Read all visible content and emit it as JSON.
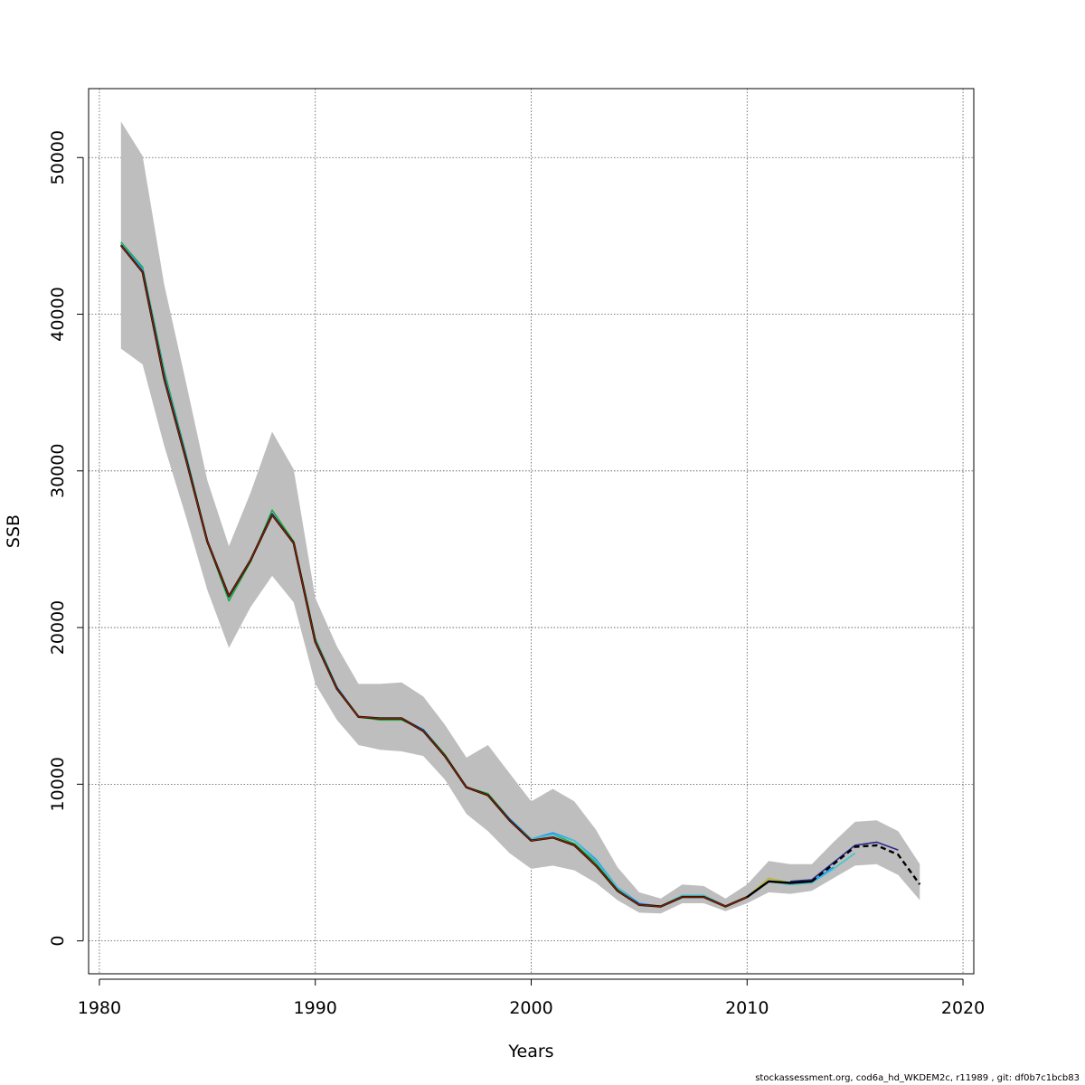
{
  "chart_data": {
    "type": "line",
    "xlabel": "Years",
    "ylabel": "SSB",
    "xlim": [
      1979.5,
      2020.5
    ],
    "ylim": [
      -2100,
      54400
    ],
    "x_ticks": [
      1980,
      1990,
      2000,
      2010,
      2020
    ],
    "y_ticks": [
      0,
      10000,
      20000,
      30000,
      40000,
      50000
    ],
    "grid": true,
    "band_color": "#bebebe",
    "confidence_band": {
      "years": [
        1981,
        1982,
        1983,
        1984,
        1985,
        1986,
        1987,
        1988,
        1989,
        1990,
        1991,
        1992,
        1993,
        1994,
        1995,
        1996,
        1997,
        1998,
        1999,
        2000,
        2001,
        2002,
        2003,
        2004,
        2005,
        2006,
        2007,
        2008,
        2009,
        2010,
        2011,
        2012,
        2013,
        2014,
        2015,
        2016,
        2017,
        2018
      ],
      "lower": [
        37800,
        36800,
        31600,
        27100,
        22400,
        18700,
        21300,
        23300,
        21600,
        16400,
        14100,
        12500,
        12200,
        12100,
        11800,
        10300,
        8100,
        7000,
        5600,
        4600,
        4800,
        4500,
        3700,
        2600,
        1800,
        1750,
        2400,
        2400,
        1900,
        2400,
        3100,
        3000,
        3200,
        4000,
        4800,
        4900,
        4200,
        2600
      ],
      "upper": [
        52300,
        50100,
        41900,
        35700,
        29400,
        25200,
        28600,
        32500,
        30100,
        21900,
        18800,
        16400,
        16400,
        16500,
        15600,
        13800,
        11700,
        12500,
        10700,
        8900,
        9700,
        8900,
        7100,
        4700,
        3100,
        2700,
        3600,
        3500,
        2700,
        3600,
        5100,
        4900,
        4900,
        6300,
        7600,
        7700,
        7000,
        4900
      ]
    },
    "series": [
      {
        "color": "#22aa44",
        "x": [
          1981,
          1982,
          1983,
          1984,
          1985,
          1986,
          1987,
          1988,
          1989,
          1990,
          1991,
          1992,
          1993,
          1994,
          1995,
          1996,
          1997,
          1998,
          1999,
          2000,
          2001,
          2002,
          2003,
          2004,
          2005,
          2006,
          2007,
          2008,
          2009,
          2010,
          2011,
          2012,
          2013
        ],
        "y": [
          44600,
          43000,
          36400,
          31100,
          25500,
          21700,
          24200,
          27500,
          25500,
          19300,
          16200,
          14300,
          14100,
          14100,
          13500,
          11900,
          9800,
          9400,
          7800,
          6500,
          6800,
          6200,
          5000,
          3300,
          2300,
          2200,
          2900,
          2900,
          2200,
          2800,
          3800,
          3600,
          3700
        ]
      },
      {
        "color": "#1e90ff",
        "x": [
          1981,
          1982,
          1983,
          1984,
          1985,
          1986,
          1987,
          1988,
          1989,
          1990,
          1991,
          1992,
          1993,
          1994,
          1995,
          1996,
          1997,
          1998,
          1999,
          2000,
          2001,
          2002,
          2003,
          2004,
          2005,
          2006,
          2007,
          2008,
          2009,
          2010,
          2011,
          2012,
          2013,
          2014
        ],
        "y": [
          44500,
          42900,
          36200,
          31000,
          25500,
          21900,
          24300,
          27300,
          25400,
          19200,
          16200,
          14300,
          14200,
          14200,
          13500,
          11800,
          9800,
          9300,
          7800,
          6500,
          6900,
          6400,
          5200,
          3400,
          2400,
          2200,
          2900,
          2900,
          2200,
          2800,
          3800,
          3700,
          3800,
          4700
        ]
      },
      {
        "color": "#40c4d0",
        "x": [
          1981,
          1982,
          1983,
          1984,
          1985,
          1986,
          1987,
          1988,
          1989,
          1990,
          1991,
          1992,
          1993,
          1994,
          1995,
          1996,
          1997,
          1998,
          1999,
          2000,
          2001,
          2002,
          2003,
          2004,
          2005,
          2006,
          2007,
          2008,
          2009,
          2010,
          2011,
          2012,
          2013,
          2014,
          2015
        ],
        "y": [
          44500,
          42800,
          36100,
          30900,
          25500,
          21900,
          24300,
          27200,
          25400,
          19200,
          16100,
          14300,
          14200,
          14200,
          13400,
          11800,
          9800,
          9300,
          7700,
          6500,
          6800,
          6400,
          5100,
          3400,
          2300,
          2200,
          2900,
          2900,
          2200,
          2800,
          3800,
          3600,
          3700,
          4600,
          5600
        ]
      },
      {
        "color": "#b8b830",
        "x": [
          2009,
          2010,
          2011,
          2012
        ],
        "y": [
          2200,
          2800,
          4000,
          3700
        ]
      },
      {
        "color": "#2b2b8c",
        "x": [
          2012,
          2013,
          2014,
          2015,
          2016,
          2017
        ],
        "y": [
          3800,
          3900,
          5000,
          6100,
          6300,
          5800
        ]
      },
      {
        "color": "#8b1a1a",
        "x": [
          1981,
          1982,
          1983,
          1984,
          1985,
          1986,
          1987,
          1988,
          1989,
          1990,
          1991,
          1992,
          1993,
          1994,
          1995,
          1996,
          1997,
          1998,
          1999,
          2000,
          2001,
          2002,
          2003,
          2004,
          2005,
          2006,
          2007,
          2008,
          2009,
          2010,
          2011
        ],
        "y": [
          44400,
          42700,
          35900,
          30800,
          25500,
          22000,
          24300,
          27200,
          25400,
          19100,
          16100,
          14300,
          14200,
          14200,
          13400,
          11800,
          9800,
          9300,
          7700,
          6400,
          6600,
          6100,
          4800,
          3200,
          2300,
          2200,
          2800,
          2800,
          2200,
          2800,
          3800
        ]
      },
      {
        "color": "#000000",
        "width": 2.4,
        "x": [
          1981,
          1982,
          1983,
          1984,
          1985,
          1986,
          1987,
          1988,
          1989,
          1990,
          1991,
          1992,
          1993,
          1994,
          1995,
          1996,
          1997,
          1998,
          1999,
          2000,
          2001,
          2002,
          2003,
          2004,
          2005,
          2006,
          2007,
          2008,
          2009,
          2010,
          2011,
          2012,
          2013,
          2014,
          2015,
          2016,
          2017,
          2018
        ],
        "y": [
          44400,
          42700,
          35900,
          30800,
          25500,
          22000,
          24300,
          27200,
          25400,
          19100,
          16100,
          14300,
          14200,
          14200,
          13400,
          11800,
          9800,
          9300,
          7700,
          6400,
          6600,
          6100,
          4800,
          3200,
          2300,
          2200,
          2800,
          2800,
          2200,
          2800,
          3800,
          3700,
          3800,
          4900,
          6000,
          6100,
          5500,
          3600
        ],
        "dash_from": 2013
      },
      {
        "color": "#8b2500",
        "width": 1.3,
        "x": [
          1981,
          1982,
          1983,
          1984,
          1985,
          1986,
          1987,
          1988,
          1989,
          1990,
          1991,
          1992,
          1993,
          1994,
          1995,
          1996,
          1997,
          1998,
          1999,
          2000,
          2001,
          2002,
          2003,
          2004,
          2005,
          2006,
          2007,
          2008,
          2009,
          2010
        ],
        "y": [
          44400,
          42700,
          35900,
          30800,
          25500,
          22000,
          24300,
          27200,
          25400,
          19100,
          16100,
          14300,
          14200,
          14200,
          13400,
          11800,
          9800,
          9300,
          7700,
          6400,
          6600,
          6100,
          4800,
          3200,
          2300,
          2200,
          2800,
          2800,
          2200,
          2800
        ]
      }
    ]
  },
  "footer": {
    "text": "stockassessment.org, cod6a_hd_WKDEM2c, r11989 , git: df0b7c1bcb83"
  }
}
